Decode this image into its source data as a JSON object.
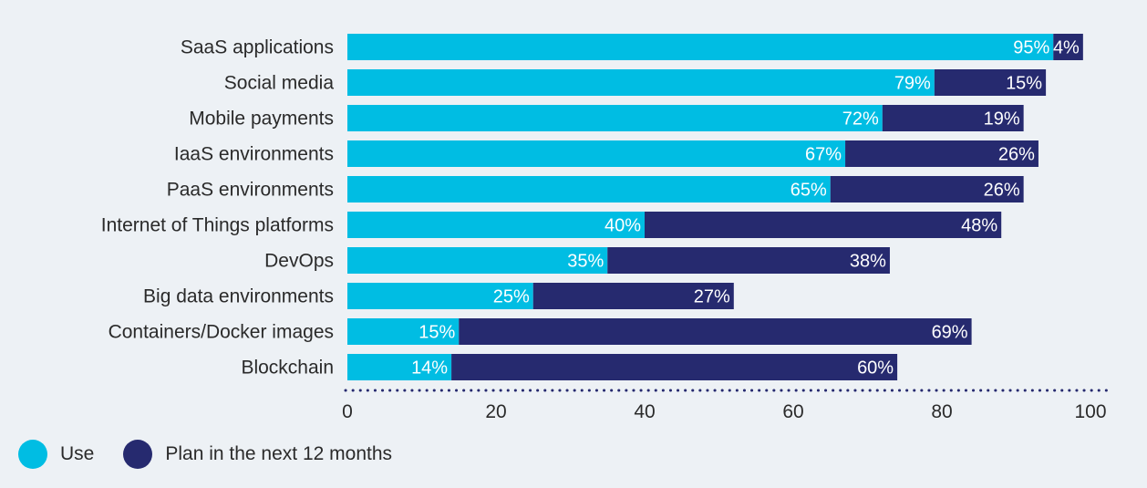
{
  "chart_data": {
    "type": "bar",
    "orientation": "horizontal",
    "stacked": true,
    "categories": [
      "SaaS applications",
      "Social media",
      "Mobile payments",
      "IaaS environments",
      "PaaS environments",
      "Internet of Things platforms",
      "DevOps",
      "Big data environments",
      "Containers/Docker images",
      "Blockchain"
    ],
    "series": [
      {
        "name": "Use",
        "color": "#00bde3",
        "values": [
          95,
          79,
          72,
          67,
          65,
          40,
          35,
          25,
          15,
          14
        ]
      },
      {
        "name": "Plan in the next 12 months",
        "color": "#262a6f",
        "values": [
          4,
          15,
          19,
          26,
          26,
          48,
          38,
          27,
          69,
          60
        ]
      }
    ],
    "value_format": "{v}%",
    "xlim": [
      0,
      100
    ],
    "xticks": [
      0,
      20,
      40,
      60,
      80,
      100
    ],
    "xlabel": "",
    "ylabel": "",
    "title": "",
    "grid": false,
    "axis_style": "dotted",
    "legend_position": "bottom-left"
  }
}
